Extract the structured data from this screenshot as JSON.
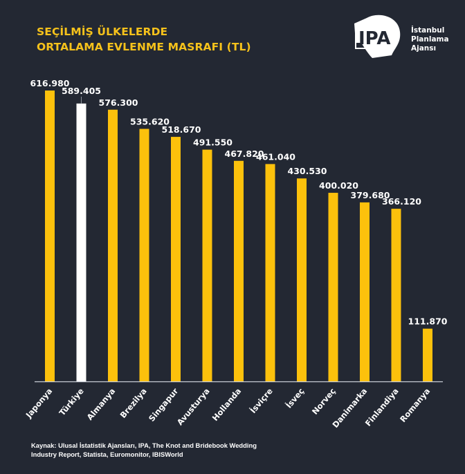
{
  "header": {
    "title_line1": "SEÇİLMİŞ ÜLKELERDE",
    "title_line2": "ORTALAMA EVLENME MASRAFI (TL)"
  },
  "logo": {
    "mark": "IPA",
    "line1": "İstanbul",
    "line2": "Planlama",
    "line3": "Ajansı"
  },
  "source": "Kaynak: Ulusal İstatistik Ajansları,  IPA, The Knot and Bridebook Wedding Industry Report, Statista, Euromonitor, IBISWorld",
  "colors": {
    "background": "#232833",
    "bar": "#fcc10c",
    "highlight_bar": "#ffffff",
    "title": "#f6c21b",
    "axis": "#c8cdd6"
  },
  "chart_data": {
    "type": "bar",
    "title": "SEÇİLMİŞ ÜLKELERDE ORTALAMA EVLENME MASRAFI (TL)",
    "xlabel": "",
    "ylabel": "",
    "ylim": [
      0,
      616980
    ],
    "grid": false,
    "legend": "none",
    "highlight": "Türkiye",
    "categories": [
      "Japonya",
      "Türkiye",
      "Almanya",
      "Brezilya",
      "Singapur",
      "Avusturya",
      "Hollanda",
      "İsviçre",
      "İsveç",
      "Norveç",
      "Danimarka",
      "Finlandiya",
      "Romanya"
    ],
    "values": [
      616980,
      589405,
      576300,
      535620,
      518670,
      491550,
      467820,
      461040,
      430530,
      400020,
      379680,
      366120,
      111870
    ],
    "labels": [
      "616.980",
      "589.405",
      "576.300",
      "535.620",
      "518.670",
      "491.550",
      "467.820",
      "461.040",
      "430.530",
      "400.020",
      "379.680",
      "366.120",
      "111.870"
    ]
  }
}
